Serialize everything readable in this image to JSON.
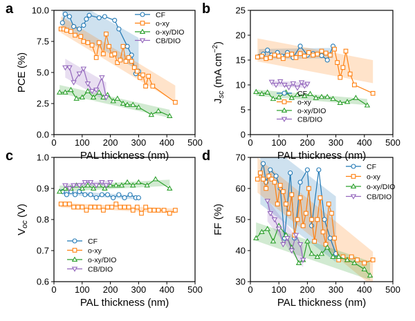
{
  "figure": {
    "xlabel": "PAL thickness (nm)",
    "colors": {
      "CF": "#1f77b4",
      "o-xy": "#ff7f0e",
      "o-xy/DIO": "#2ca02c",
      "CB/DIO": "#9467bd"
    }
  },
  "chart_data": [
    {
      "type": "line",
      "panel_label": "a",
      "ylabel": "PCE (%)",
      "xlabel": "PAL thickness (nm)",
      "xlim": [
        0,
        500
      ],
      "ylim": [
        0,
        10
      ],
      "xticks": [
        0,
        100,
        200,
        300,
        400,
        500
      ],
      "yticks": [
        0.0,
        2.5,
        5.0,
        7.5,
        10.0
      ],
      "ytick_labels": [
        "0.0",
        "2.5",
        "5.0",
        "7.5",
        "10.0"
      ],
      "legend_position": "top-right",
      "series": [
        {
          "name": "CF",
          "marker": "circle",
          "x": [
            30,
            40,
            55,
            70,
            90,
            105,
            115,
            125,
            160,
            180,
            215,
            230,
            260,
            275,
            290,
            300
          ],
          "y": [
            9.0,
            9.7,
            9.5,
            8.7,
            8.5,
            8.8,
            9.3,
            9.6,
            9.4,
            9.5,
            9.2,
            8.5,
            7.1,
            6.4,
            4.9,
            5.1
          ]
        },
        {
          "name": "o-xy",
          "marker": "square",
          "x": [
            25,
            35,
            45,
            60,
            75,
            95,
            105,
            120,
            135,
            150,
            160,
            175,
            185,
            195,
            205,
            215,
            225,
            235,
            245,
            255,
            265,
            275,
            285,
            295,
            305,
            315,
            325,
            335,
            350,
            430
          ],
          "y": [
            8.5,
            8.5,
            8.4,
            8.3,
            8.0,
            7.9,
            7.5,
            7.4,
            7.2,
            6.2,
            7.4,
            6.5,
            8.1,
            7.1,
            6.4,
            6.5,
            5.8,
            6.0,
            7.1,
            5.9,
            6.2,
            5.9,
            5.4,
            5.1,
            4.6,
            4.8,
            3.9,
            4.7,
            3.9,
            2.6
          ]
        },
        {
          "name": "o-xy/DIO",
          "marker": "triangle-up",
          "x": [
            20,
            40,
            60,
            80,
            100,
            120,
            140,
            160,
            175,
            190,
            210,
            225,
            245,
            260,
            280,
            300,
            345,
            370,
            410
          ],
          "y": [
            3.4,
            3.4,
            3.6,
            2.9,
            3.0,
            3.5,
            3.0,
            3.4,
            3.0,
            3.2,
            2.7,
            2.9,
            2.5,
            2.4,
            2.4,
            2.2,
            1.6,
            1.9,
            1.5
          ]
        },
        {
          "name": "CB/DIO",
          "marker": "triangle-down",
          "x": [
            40,
            55,
            70,
            90,
            105,
            120,
            135,
            150,
            170,
            185
          ],
          "y": [
            5.4,
            5.4,
            4.2,
            4.9,
            5.3,
            4.1,
            3.5,
            3.6,
            4.6,
            3.0
          ]
        }
      ]
    },
    {
      "type": "line",
      "panel_label": "b",
      "ylabel": "J_sc (mA cm^-2)",
      "ylabel_main": "J",
      "ylabel_sub": "sc",
      "ylabel_units": " (mA cm",
      "ylabel_exp": "−2",
      "ylabel_close": ")",
      "xlabel": "PAL thickness (nm)",
      "xlim": [
        0,
        500
      ],
      "ylim": [
        0,
        25
      ],
      "xticks": [
        0,
        100,
        200,
        300,
        400,
        500
      ],
      "yticks": [
        0,
        5,
        10,
        15,
        20,
        25
      ],
      "ytick_labels": [
        "0",
        "5",
        "10",
        "15",
        "20",
        "25"
      ],
      "legend_position": "center-left",
      "series": [
        {
          "name": "CF",
          "marker": "circle",
          "x": [
            30,
            45,
            60,
            75,
            95,
            110,
            130,
            150,
            175,
            200,
            220,
            250,
            270,
            290
          ],
          "y": [
            15.7,
            16.2,
            17.0,
            16.0,
            16.5,
            15.8,
            16.5,
            15.5,
            17.8,
            16.0,
            16.3,
            15.9,
            15.0,
            17.8
          ]
        },
        {
          "name": "o-xy",
          "marker": "square",
          "x": [
            25,
            40,
            55,
            70,
            85,
            100,
            115,
            130,
            145,
            160,
            175,
            190,
            205,
            220,
            235,
            250,
            265,
            280,
            295,
            305,
            315,
            325,
            335,
            350,
            365,
            430
          ],
          "y": [
            15.6,
            15.8,
            15.3,
            15.5,
            16.0,
            15.8,
            15.3,
            16.0,
            16.2,
            15.5,
            16.3,
            15.8,
            16.5,
            16.0,
            16.2,
            16.8,
            16.4,
            16.0,
            17.2,
            14.5,
            11.5,
            13.5,
            16.8,
            12.2,
            10.0,
            8.3
          ]
        },
        {
          "name": "o-xy/DIO",
          "marker": "triangle-up",
          "x": [
            20,
            40,
            60,
            80,
            100,
            125,
            145,
            165,
            190,
            210,
            230,
            250,
            270,
            290,
            315,
            340,
            370,
            410
          ],
          "y": [
            8.6,
            8.2,
            8.5,
            7.2,
            7.5,
            8.5,
            7.4,
            8.0,
            7.8,
            8.2,
            7.4,
            7.6,
            7.6,
            7.2,
            6.4,
            6.6,
            7.4,
            5.9
          ]
        },
        {
          "name": "CB/DIO",
          "marker": "triangle-down",
          "x": [
            75,
            90,
            105,
            120,
            135,
            150,
            165,
            180,
            190,
            200
          ],
          "y": [
            10.6,
            10.0,
            10.7,
            10.0,
            9.5,
            10.3,
            9.4,
            10.5,
            9.8,
            10.2
          ]
        }
      ]
    },
    {
      "type": "line",
      "panel_label": "c",
      "ylabel": "V_oc (V)",
      "ylabel_main": "V",
      "ylabel_sub": "oc",
      "ylabel_units": " (V)",
      "xlabel": "PAL thickness (nm)",
      "xlim": [
        0,
        500
      ],
      "ylim": [
        0.6,
        1.0
      ],
      "xticks": [
        0,
        100,
        200,
        300,
        400,
        500
      ],
      "yticks": [
        0.6,
        0.7,
        0.8,
        0.9,
        1.0
      ],
      "ytick_labels": [
        "0.6",
        "0.7",
        "0.8",
        "0.9",
        "1.0"
      ],
      "legend_position": "bottom-left",
      "series": [
        {
          "name": "CF",
          "marker": "circle",
          "x": [
            30,
            45,
            60,
            75,
            90,
            110,
            130,
            150,
            170,
            190,
            210,
            230,
            250,
            270,
            290,
            300
          ],
          "y": [
            0.89,
            0.88,
            0.89,
            0.88,
            0.89,
            0.88,
            0.88,
            0.87,
            0.88,
            0.88,
            0.87,
            0.88,
            0.87,
            0.88,
            0.87,
            0.87
          ]
        },
        {
          "name": "o-xy",
          "marker": "square",
          "x": [
            25,
            40,
            55,
            70,
            85,
            100,
            115,
            130,
            145,
            160,
            175,
            190,
            205,
            220,
            235,
            250,
            265,
            280,
            295,
            310,
            325,
            340,
            355,
            370,
            390,
            410,
            430
          ],
          "y": [
            0.85,
            0.85,
            0.85,
            0.84,
            0.84,
            0.84,
            0.83,
            0.84,
            0.84,
            0.84,
            0.83,
            0.84,
            0.84,
            0.85,
            0.84,
            0.84,
            0.84,
            0.83,
            0.84,
            0.82,
            0.84,
            0.83,
            0.83,
            0.83,
            0.83,
            0.82,
            0.83
          ]
        },
        {
          "name": "o-xy/DIO",
          "marker": "triangle-up",
          "x": [
            20,
            40,
            60,
            80,
            100,
            120,
            140,
            160,
            180,
            200,
            220,
            240,
            260,
            280,
            300,
            330,
            360,
            410
          ],
          "y": [
            0.89,
            0.9,
            0.9,
            0.91,
            0.9,
            0.91,
            0.9,
            0.91,
            0.9,
            0.91,
            0.91,
            0.91,
            0.92,
            0.91,
            0.92,
            0.91,
            0.93,
            0.9
          ]
        },
        {
          "name": "CB/DIO",
          "marker": "triangle-down",
          "x": [
            40,
            55,
            70,
            90,
            110,
            130,
            150,
            170,
            185,
            200
          ],
          "y": [
            0.91,
            0.9,
            0.91,
            0.91,
            0.92,
            0.92,
            0.91,
            0.92,
            0.91,
            0.92
          ]
        }
      ]
    },
    {
      "type": "line",
      "panel_label": "d",
      "ylabel": "FF (%)",
      "xlabel": "PAL thickness (nm)",
      "xlim": [
        0,
        500
      ],
      "ylim": [
        30,
        70
      ],
      "xticks": [
        0,
        100,
        200,
        300,
        400,
        500
      ],
      "yticks": [
        30,
        40,
        50,
        60,
        70
      ],
      "ytick_labels": [
        "30",
        "40",
        "50",
        "60",
        "70"
      ],
      "legend_position": "top-right",
      "series": [
        {
          "name": "CF",
          "marker": "circle",
          "x": [
            35,
            45,
            55,
            70,
            90,
            105,
            120,
            140,
            155,
            175,
            200,
            215,
            240,
            260,
            280,
            300
          ],
          "y": [
            65,
            68,
            62,
            66,
            64,
            60,
            44,
            65,
            44,
            62,
            66,
            48,
            66,
            50,
            44,
            39
          ]
        },
        {
          "name": "o-xy",
          "marker": "square",
          "x": [
            25,
            35,
            45,
            55,
            65,
            75,
            85,
            95,
            105,
            115,
            125,
            135,
            145,
            155,
            165,
            175,
            185,
            195,
            205,
            215,
            225,
            235,
            245,
            255,
            265,
            275,
            285,
            295,
            310,
            325,
            340,
            355,
            375,
            400,
            430
          ],
          "y": [
            63,
            65,
            63,
            60,
            64,
            63,
            62,
            55,
            61,
            59,
            55,
            52,
            58,
            45,
            50,
            57,
            48,
            52,
            60,
            50,
            43,
            50,
            57,
            46,
            42,
            55,
            52,
            44,
            37,
            38,
            37,
            38,
            37,
            36,
            37
          ]
        },
        {
          "name": "o-xy/DIO",
          "marker": "triangle-up",
          "x": [
            20,
            40,
            60,
            80,
            100,
            125,
            145,
            170,
            185,
            200,
            215,
            235,
            250,
            270,
            290,
            310,
            340,
            365,
            400,
            420
          ],
          "y": [
            44,
            46,
            47,
            43,
            48,
            45,
            41,
            36,
            37,
            43,
            39,
            38,
            39,
            41,
            38,
            38,
            37,
            36,
            34,
            32
          ]
        },
        {
          "name": "CB/DIO",
          "marker": "triangle-down",
          "x": [
            60,
            70,
            85,
            100,
            115,
            130,
            145,
            160,
            175,
            185
          ],
          "y": [
            56,
            52,
            50,
            47,
            42,
            44,
            40,
            45,
            42,
            37
          ]
        }
      ]
    }
  ]
}
